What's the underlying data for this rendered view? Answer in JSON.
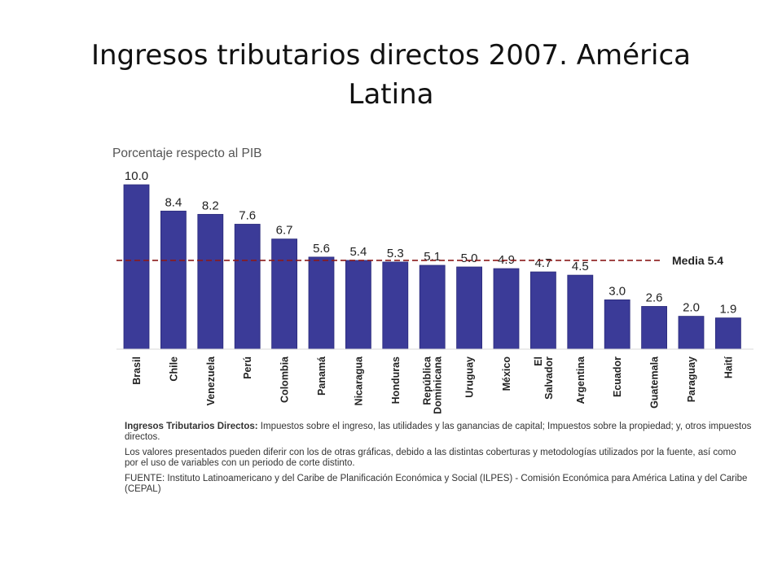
{
  "slide": {
    "title_line1": "Ingresos tributarios directos 2007. América",
    "title_line2": "Latina"
  },
  "chart_data": {
    "type": "bar",
    "title": "Porcentaje respecto al PIB",
    "categories": [
      "Brasil",
      "Chile",
      "Venezuela",
      "Perú",
      "Colombia",
      "Panamá",
      "Nicaragua",
      "Honduras",
      "República Dominicana",
      "Uruguay",
      "México",
      "El Salvador",
      "Argentina",
      "Ecuador",
      "Guatemala",
      "Paraguay",
      "Haití"
    ],
    "values": [
      10.0,
      8.4,
      8.2,
      7.6,
      6.7,
      5.6,
      5.4,
      5.3,
      5.1,
      5.0,
      4.9,
      4.7,
      4.5,
      3.0,
      2.6,
      2.0,
      1.9
    ],
    "value_labels": [
      "10.0",
      "8.4",
      "8.2",
      "7.6",
      "6.7",
      "5.6",
      "5.4",
      "5.3",
      "5.1",
      "5.0",
      "4.9",
      "4.7",
      "4.5",
      "3.0",
      "2.6",
      "2.0",
      "1.9"
    ],
    "reference_line": {
      "value": 5.4,
      "label": "Media 5.4",
      "color": "#8b1a1a",
      "style": "dashed"
    },
    "bar_color": "#3b3b98",
    "ylim": [
      0,
      10
    ],
    "grid": false
  },
  "notes": {
    "definition_label": "Ingresos Tributarios Directos:",
    "definition_text": " Impuestos sobre el ingreso, las utilidades y las ganancias de capital; Impuestos sobre la propiedad; y, otros impuestos directos.",
    "caveat": "Los valores presentados pueden diferir con los de otras gráficas, debido a las distintas coberturas y metodologías utilizados por la fuente, así como por el uso de variables con un periodo de corte distinto.",
    "source": "FUENTE: Instituto Latinoamericano y del Caribe de Planificación Económica y Social (ILPES) - Comisión Económica para América Latina y del Caribe (CEPAL)"
  }
}
